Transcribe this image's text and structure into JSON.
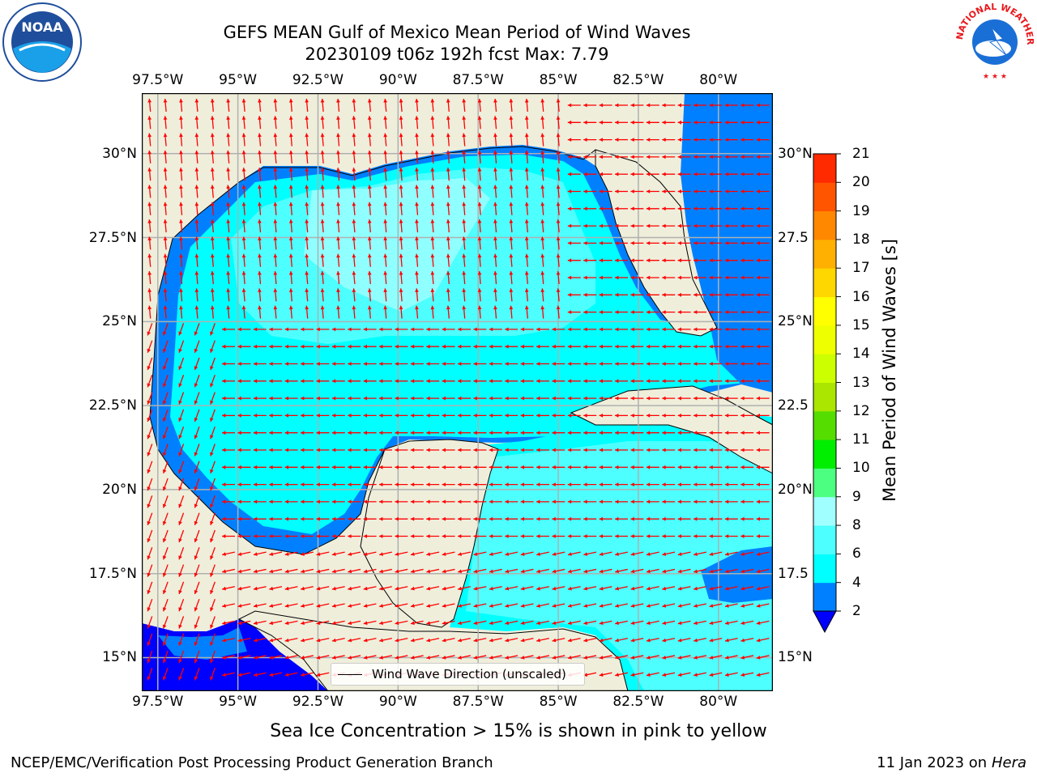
{
  "title": {
    "line1": "GEFS MEAN Gulf of Mexico Mean Period of Wind Waves",
    "line2": "20230109 t06z 192h fcst   Max: 7.79"
  },
  "map": {
    "lon_ticks": [
      "97.5°W",
      "95°W",
      "92.5°W",
      "90°W",
      "87.5°W",
      "85°W",
      "82.5°W",
      "80°W"
    ],
    "lat_ticks_left": [
      "30°N",
      "27.5°N",
      "25°N",
      "22.5°N",
      "20°N",
      "17.5°N",
      "15°N"
    ],
    "lat_ticks_right": [
      "30°N",
      "27.5",
      "25°N",
      "22.5",
      "20°N",
      "17.5",
      "15°N"
    ],
    "extent": {
      "lon_min": -98.0,
      "lon_max": -78.3,
      "lat_min": 14.0,
      "lat_max": 31.8
    },
    "colors": {
      "land": "#efeedb",
      "ocean_dark": "#0000ff",
      "ocean_mid": "#0080ff",
      "ocean_cyan": "#00ffff",
      "ocean_light": "#4dffff",
      "ocean_pale": "#a0ffff",
      "arrow": "#ff0000",
      "grid": "#b0b0b0"
    }
  },
  "legend": {
    "label": "Wind Wave Direction (unscaled)"
  },
  "colorbar": {
    "label": "Mean Period of Wind Waves [s]",
    "ticks": [
      "2",
      "4",
      "6",
      "8",
      "9",
      "10",
      "11",
      "12",
      "13",
      "14",
      "15",
      "16",
      "17",
      "18",
      "19",
      "20",
      "21"
    ],
    "tick_values": [
      2,
      4,
      6,
      8,
      9,
      10,
      11,
      12,
      13,
      14,
      15,
      16,
      17,
      18,
      19,
      20,
      21
    ],
    "colors": [
      "#0080ff",
      "#00ffff",
      "#4dffff",
      "#a0ffff",
      "#4dff80",
      "#00ee00",
      "#55dd00",
      "#aae600",
      "#ccff00",
      "#eeff00",
      "#ffff00",
      "#ffd700",
      "#ffb000",
      "#ff8800",
      "#ff5500",
      "#ff2a00",
      "#ff0000"
    ]
  },
  "note": "Sea Ice Concentration > 15% is shown in pink to yellow",
  "credit_left": "NCEP/EMC/Verification Post Processing Product Generation Branch",
  "credit_date": "11 Jan 2023 on ",
  "credit_machine": "Hera",
  "logos": {
    "noaa": "NOAA",
    "nws": "NATIONAL WEATHER SERVICE"
  }
}
